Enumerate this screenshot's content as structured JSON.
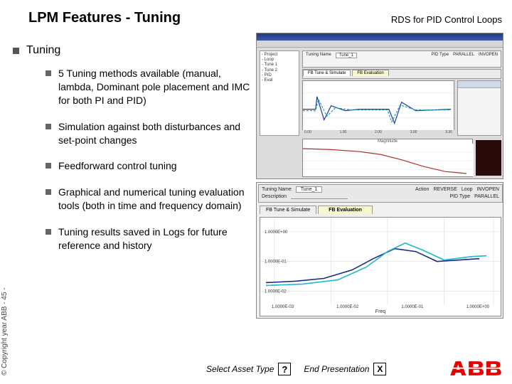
{
  "title": "LPM Features - Tuning",
  "subtitle": "RDS for PID Control Loops",
  "main_bullet": "Tuning",
  "bullets": [
    "5 Tuning methods available (manual, lambda, Dominant pole placement and IMC for both PI and PID)",
    "Simulation against both disturbances and set-point changes",
    "Feedforward control tuning",
    "Graphical and numerical tuning evaluation tools (both in time and frequency domain)",
    "Tuning results saved in Logs for future reference and history"
  ],
  "copyright": "© Copyright year ABB - 45 -",
  "nav": {
    "select_label": "Select Asset Type",
    "select_symbol": "?",
    "end_label": "End Presentation",
    "end_symbol": "X"
  },
  "colors": {
    "bg": "#ffffff",
    "bullet_sq": "#555555",
    "app_title_top": "#223a7a",
    "app_title_bot": "#3a5aaa",
    "panel_head": "#cfd8e6",
    "logo": "#e60000"
  },
  "app": {
    "tree_lines": [
      "- Project",
      "  - Loop",
      "    - Tune 1",
      "    - Tune 2",
      "    - PID",
      "    - Eval"
    ],
    "tabs": {
      "l": "FB Tune & Simulate",
      "r": "FB Evaluation"
    },
    "top_chart": {
      "bg": "#ffffff",
      "grid": "#e0e0e0",
      "xticks": [
        "0.00",
        "0.30",
        "1.00",
        "1.30",
        "2.00",
        "2.30",
        "3.00",
        "3.30"
      ],
      "series": [
        {
          "color": "#1a3aa0",
          "width": 1.2,
          "points": [
            [
              0,
              40
            ],
            [
              18,
              40
            ],
            [
              20,
              22
            ],
            [
              30,
              55
            ],
            [
              40,
              35
            ],
            [
              60,
              42
            ],
            [
              80,
              40
            ],
            [
              120,
              40
            ],
            [
              122,
              40
            ],
            [
              130,
              60
            ],
            [
              140,
              30
            ],
            [
              160,
              42
            ],
            [
              210,
              40
            ]
          ]
        },
        {
          "color": "#17a2b8",
          "width": 1.2,
          "dash": "3 2",
          "points": [
            [
              0,
              42
            ],
            [
              18,
              42
            ],
            [
              22,
              26
            ],
            [
              34,
              50
            ],
            [
              46,
              38
            ],
            [
              70,
              41
            ],
            [
              120,
              41
            ],
            [
              126,
              58
            ],
            [
              138,
              34
            ],
            [
              160,
              41
            ],
            [
              210,
              41
            ]
          ]
        }
      ]
    },
    "bode_chart": {
      "bg": "#ffffff",
      "grid": "#dddddd",
      "title": "Magnitude",
      "series": [
        {
          "color": "#b03030",
          "width": 1.2,
          "points": [
            [
              0,
              10
            ],
            [
              40,
              12
            ],
            [
              80,
              16
            ],
            [
              110,
              22
            ],
            [
              140,
              33
            ],
            [
              170,
              46
            ],
            [
              200,
              56
            ],
            [
              230,
              60
            ]
          ]
        }
      ]
    },
    "mid_header": {
      "name_label": "Tuning Name",
      "name_value": "Tune_1",
      "action_label": "Action",
      "action_value": "REVERSE",
      "loop_label": "Loop",
      "loop_value": "INVOPEN",
      "desc_label": "Description",
      "pidtype_label": "PID Type",
      "pidtype_value": "PARALLEL"
    },
    "big_chart": {
      "bg": "#ffffff",
      "grid": "#d6d6d6",
      "xlabel": "Freq",
      "xticks": [
        "1.0000E-03",
        "1.0000E-02",
        "1.0000E-01",
        "1.0000E+00"
      ],
      "yticks": [
        "1.0000E+00",
        "1.0000E-01",
        "1.0000E-02"
      ],
      "series": [
        {
          "color": "#1a2a88",
          "width": 1.6,
          "points": [
            [
              8,
              92
            ],
            [
              50,
              90
            ],
            [
              90,
              86
            ],
            [
              130,
              74
            ],
            [
              160,
              58
            ],
            [
              190,
              44
            ],
            [
              220,
              48
            ],
            [
              250,
              62
            ],
            [
              280,
              60
            ],
            [
              310,
              58
            ]
          ]
        },
        {
          "color": "#1fb8c9",
          "width": 1.6,
          "points": [
            [
              8,
              96
            ],
            [
              60,
              94
            ],
            [
              110,
              88
            ],
            [
              150,
              70
            ],
            [
              180,
              48
            ],
            [
              205,
              36
            ],
            [
              230,
              46
            ],
            [
              260,
              60
            ],
            [
              300,
              55
            ],
            [
              320,
              54
            ]
          ]
        }
      ]
    }
  }
}
